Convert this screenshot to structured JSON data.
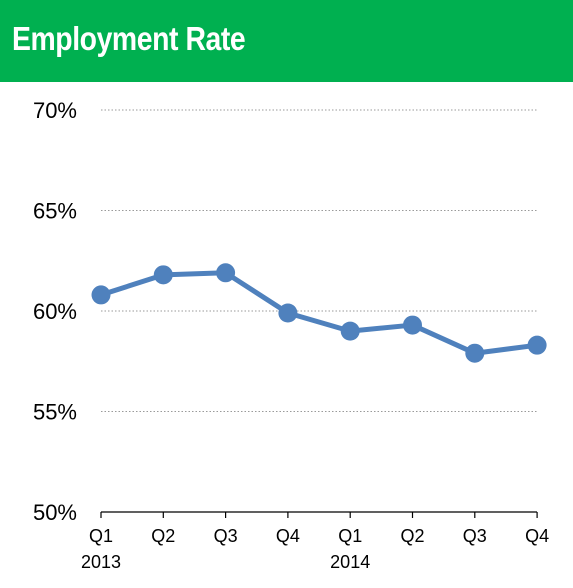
{
  "header": {
    "title": "Employment Rate",
    "background": "#00B050"
  },
  "chart_data": {
    "type": "line",
    "title": "Employment Rate",
    "xlabel": "",
    "ylabel": "",
    "categories": [
      "Q1",
      "Q2",
      "Q3",
      "Q4",
      "Q1",
      "Q2",
      "Q3",
      "Q4"
    ],
    "group_labels": [
      "2013",
      "",
      "",
      "",
      "2014",
      "",
      "",
      ""
    ],
    "series": [
      {
        "values": [
          60.8,
          61.8,
          61.9,
          59.9,
          59.0,
          59.3,
          57.9,
          58.3
        ],
        "color": "#4F81BD"
      }
    ],
    "ylim": [
      50,
      70
    ],
    "yticks": [
      50,
      55,
      60,
      65,
      70
    ],
    "ytick_labels": [
      "50%",
      "55%",
      "60%",
      "65%",
      "70%"
    ],
    "grid": "dotted horizontal"
  }
}
